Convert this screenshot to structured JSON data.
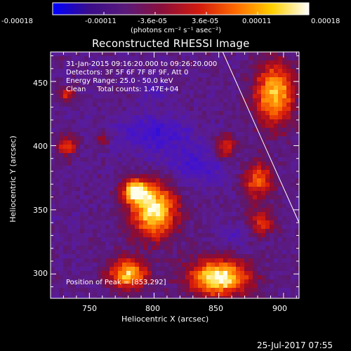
{
  "colorbar": {
    "tick_labels": [
      "-0.00018",
      "-0.00011",
      "-3.6e-05",
      "3.6e-05",
      "0.00011",
      "0.00018"
    ],
    "unit_label": "(photons cm⁻² s⁻¹ asec⁻²)",
    "range": [
      -0.00018,
      0.00018
    ],
    "colors": [
      "#0000ff",
      "#3a0d8a",
      "#5a1a7a",
      "#8c0f3a",
      "#d11a0e",
      "#ff6a00",
      "#ffd000",
      "#ffffff"
    ]
  },
  "title": "Reconstructed RHESSI Image",
  "annotations": {
    "time_range": "31-Jan-2015 09:16:20.000 to 09:26:20.000",
    "detectors": "Detectors: 3F 5F 6F 7F 8F 9F, Att 0",
    "energy_range": "Energy Range: 25.0 - 50.0 keV",
    "clean_counts": "Clean     Total counts: 1.47E+04",
    "peak_position": "Position of Peak = [853,292]"
  },
  "axes": {
    "xlabel": "Heliocentric X (arcsec)",
    "ylabel": "Heliocentric Y (arcsec)",
    "x_ticks": [
      "750",
      "800",
      "850",
      "900"
    ],
    "y_ticks": [
      "300",
      "350",
      "400",
      "450"
    ],
    "xlim": [
      720,
      912
    ],
    "ylim": [
      281,
      473
    ]
  },
  "limb_line": {
    "x": [
      853,
      912
    ],
    "y": [
      473,
      340
    ]
  },
  "bright_sources": [
    {
      "x": 800,
      "y": 350,
      "rx": 18,
      "ry": 22,
      "intensity": 1.0
    },
    {
      "x": 785,
      "y": 365,
      "rx": 10,
      "ry": 10,
      "intensity": 0.8
    },
    {
      "x": 850,
      "y": 297,
      "rx": 24,
      "ry": 15,
      "intensity": 1.0
    },
    {
      "x": 780,
      "y": 300,
      "rx": 16,
      "ry": 12,
      "intensity": 0.85
    },
    {
      "x": 893,
      "y": 440,
      "rx": 16,
      "ry": 25,
      "intensity": 0.85
    },
    {
      "x": 880,
      "y": 373,
      "rx": 12,
      "ry": 16,
      "intensity": 0.6
    },
    {
      "x": 855,
      "y": 398,
      "rx": 9,
      "ry": 11,
      "intensity": 0.55
    },
    {
      "x": 733,
      "y": 400,
      "rx": 8,
      "ry": 8,
      "intensity": 0.55
    },
    {
      "x": 733,
      "y": 440,
      "rx": 7,
      "ry": 6,
      "intensity": 0.45
    },
    {
      "x": 883,
      "y": 340,
      "rx": 10,
      "ry": 10,
      "intensity": 0.5
    },
    {
      "x": 760,
      "y": 405,
      "rx": 5,
      "ry": 5,
      "intensity": 0.35
    }
  ],
  "dark_regions": [
    {
      "x": 800,
      "y": 410,
      "rx": 28,
      "ry": 14,
      "intensity": 0.55
    },
    {
      "x": 835,
      "y": 385,
      "rx": 30,
      "ry": 16,
      "intensity": 0.45
    },
    {
      "x": 800,
      "y": 442,
      "rx": 12,
      "ry": 8,
      "intensity": 0.35
    },
    {
      "x": 860,
      "y": 330,
      "rx": 12,
      "ry": 8,
      "intensity": 0.3
    }
  ],
  "timestamp": "25-Jul-2017 07:55"
}
